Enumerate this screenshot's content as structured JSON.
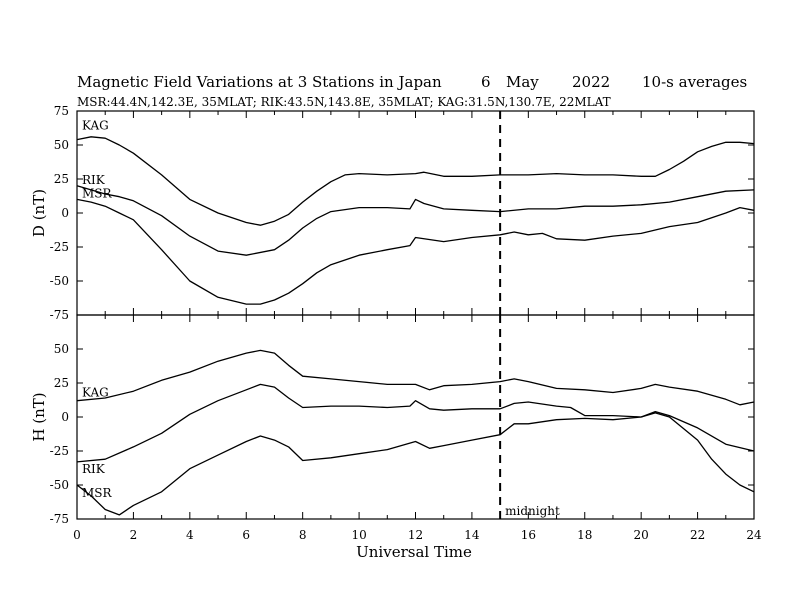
{
  "title": {
    "main": "Magnetic Field Variations at 3 Stations in Japan",
    "day": "6",
    "month": "May",
    "year": "2022",
    "averaging": "10-s averages"
  },
  "subtitle": "MSR:44.4N,142.3E, 35MLAT;  RIK:43.5N,143.8E, 35MLAT;  KAG:31.5N,130.7E, 22MLAT",
  "xlabel": "Universal Time",
  "midnight_label": "midnight",
  "chart_data": [
    {
      "type": "line",
      "panel": "D",
      "ylabel": "D (nT)",
      "xlim": [
        0,
        24
      ],
      "ylim": [
        -75,
        75
      ],
      "xticks": [
        0,
        2,
        4,
        6,
        8,
        10,
        12,
        14,
        16,
        18,
        20,
        22,
        24
      ],
      "yticks": [
        -75,
        -50,
        -25,
        0,
        25,
        50,
        75
      ],
      "midnight_ut": 15,
      "series": [
        {
          "name": "KAG",
          "x": [
            0,
            0.5,
            1,
            1.5,
            2,
            3,
            4,
            5,
            6,
            6.5,
            7,
            7.5,
            8,
            8.5,
            9,
            9.5,
            10,
            11,
            12,
            12.3,
            13,
            14,
            15,
            16,
            17,
            18,
            19,
            20,
            20.5,
            21,
            21.5,
            22,
            22.5,
            23,
            23.5,
            24
          ],
          "y": [
            54,
            56,
            55,
            50,
            44,
            28,
            10,
            0,
            -7,
            -9,
            -6,
            -1,
            8,
            16,
            23,
            28,
            29,
            28,
            29,
            30,
            27,
            27,
            28,
            28,
            29,
            28,
            28,
            27,
            27,
            32,
            38,
            45,
            49,
            52,
            52,
            51
          ]
        },
        {
          "name": "RIK",
          "x": [
            0,
            0.5,
            1,
            1.5,
            2,
            3,
            4,
            5,
            6,
            7,
            7.5,
            8,
            8.5,
            9,
            10,
            11,
            11.8,
            12,
            12.3,
            13,
            14,
            15,
            16,
            17,
            18,
            19,
            20,
            21,
            22,
            23,
            24
          ],
          "y": [
            20,
            17,
            14,
            12,
            9,
            -2,
            -17,
            -28,
            -31,
            -27,
            -20,
            -11,
            -4,
            1,
            4,
            4,
            3,
            10,
            7,
            3,
            2,
            1,
            3,
            3,
            5,
            5,
            6,
            8,
            12,
            16,
            17
          ]
        },
        {
          "name": "MSR",
          "x": [
            0,
            0.5,
            1,
            1.5,
            2,
            3,
            4,
            5,
            6,
            6.5,
            7,
            7.5,
            8,
            8.5,
            9,
            10,
            11,
            11.8,
            12,
            13,
            14,
            15,
            15.5,
            16,
            16.5,
            17,
            18,
            19,
            20,
            21,
            22,
            23,
            23.5,
            24
          ],
          "y": [
            10,
            8,
            5,
            0,
            -5,
            -27,
            -50,
            -62,
            -67,
            -67,
            -64,
            -59,
            -52,
            -44,
            -38,
            -31,
            -27,
            -24,
            -18,
            -21,
            -18,
            -16,
            -14,
            -16,
            -15,
            -19,
            -20,
            -17,
            -15,
            -10,
            -7,
            0,
            4,
            2
          ]
        }
      ]
    },
    {
      "type": "line",
      "panel": "H",
      "ylabel": "H (nT)",
      "xlim": [
        0,
        24
      ],
      "ylim": [
        -75,
        75
      ],
      "xticks": [
        0,
        2,
        4,
        6,
        8,
        10,
        12,
        14,
        16,
        18,
        20,
        22,
        24
      ],
      "yticks": [
        -75,
        -50,
        -25,
        0,
        25,
        50,
        75
      ],
      "midnight_ut": 15,
      "series": [
        {
          "name": "KAG",
          "x": [
            0,
            1,
            2,
            3,
            4,
            5,
            6,
            6.5,
            7,
            7.5,
            8,
            9,
            10,
            11,
            12,
            12.5,
            13,
            14,
            15,
            15.5,
            16,
            17,
            18,
            19,
            20,
            20.5,
            21,
            22,
            23,
            23.5,
            24
          ],
          "y": [
            12,
            14,
            19,
            27,
            33,
            41,
            47,
            49,
            47,
            38,
            30,
            28,
            26,
            24,
            24,
            20,
            23,
            24,
            26,
            28,
            26,
            21,
            20,
            18,
            21,
            24,
            22,
            19,
            13,
            9,
            11
          ]
        },
        {
          "name": "RIK",
          "x": [
            0,
            1,
            2,
            3,
            4,
            5,
            6,
            6.5,
            7,
            7.5,
            8,
            9,
            10,
            11,
            11.8,
            12,
            12.5,
            13,
            14,
            15,
            15.5,
            16,
            17,
            17.5,
            18,
            19,
            20,
            20.5,
            21,
            22,
            23,
            24
          ],
          "y": [
            -33,
            -31,
            -22,
            -12,
            2,
            12,
            20,
            24,
            22,
            14,
            7,
            8,
            8,
            7,
            8,
            12,
            6,
            5,
            6,
            6,
            10,
            11,
            8,
            7,
            1,
            1,
            0,
            4,
            1,
            -8,
            -20,
            -25
          ]
        },
        {
          "name": "MSR",
          "x": [
            0,
            0.5,
            1,
            1.5,
            2,
            3,
            4,
            5,
            6,
            6.5,
            7,
            7.5,
            8,
            9,
            10,
            11,
            12,
            12.5,
            13,
            14,
            15,
            15.5,
            16,
            17,
            18,
            19,
            20,
            20.5,
            21,
            22,
            22.5,
            23,
            23.5,
            24
          ],
          "y": [
            -50,
            -58,
            -68,
            -72,
            -65,
            -55,
            -38,
            -28,
            -18,
            -14,
            -17,
            -22,
            -32,
            -30,
            -27,
            -24,
            -18,
            -23,
            -21,
            -17,
            -13,
            -5,
            -5,
            -2,
            -1,
            -2,
            0,
            3,
            0,
            -17,
            -31,
            -42,
            -50,
            -55
          ]
        }
      ]
    }
  ]
}
